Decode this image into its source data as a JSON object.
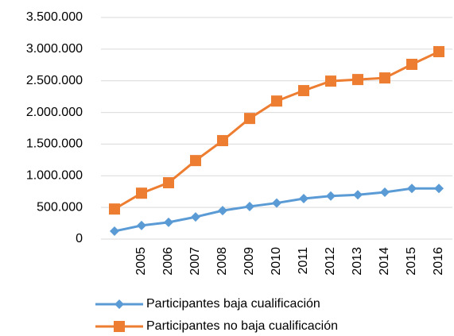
{
  "chart_data": {
    "type": "line",
    "categories": [
      null,
      "2005",
      "2006",
      "2007",
      "2008",
      "2009",
      "2010",
      "2011",
      "2012",
      "2013",
      "2014",
      "2015",
      "2016"
    ],
    "series": [
      {
        "name": "Participantes baja cualificación",
        "color": "#5b9bd5",
        "marker": "diamond",
        "values": [
          125000,
          215000,
          265000,
          350000,
          450000,
          515000,
          570000,
          640000,
          680000,
          700000,
          740000,
          800000,
          800000
        ]
      },
      {
        "name": "Participantes no baja cualificación",
        "color": "#ed7d31",
        "marker": "square",
        "values": [
          475000,
          725000,
          890000,
          1240000,
          1555000,
          1905000,
          2180000,
          2345000,
          2495000,
          2520000,
          2545000,
          2760000,
          2960000
        ]
      }
    ],
    "ylim": [
      0,
      3500000
    ],
    "yticks": [
      0,
      {
        "value": 500000,
        "label": "500.000"
      },
      {
        "value": 1000000,
        "label": "1.000.000"
      },
      {
        "value": 1500000,
        "label": "1.500.000"
      },
      {
        "value": 2000000,
        "label": "2.000.000"
      },
      {
        "value": 2500000,
        "label": "2.500.000"
      },
      {
        "value": 3000000,
        "label": "3.000.000"
      },
      {
        "value": 3500000,
        "label": "3.500.000"
      }
    ],
    "grid": true,
    "legend": "bottom"
  }
}
